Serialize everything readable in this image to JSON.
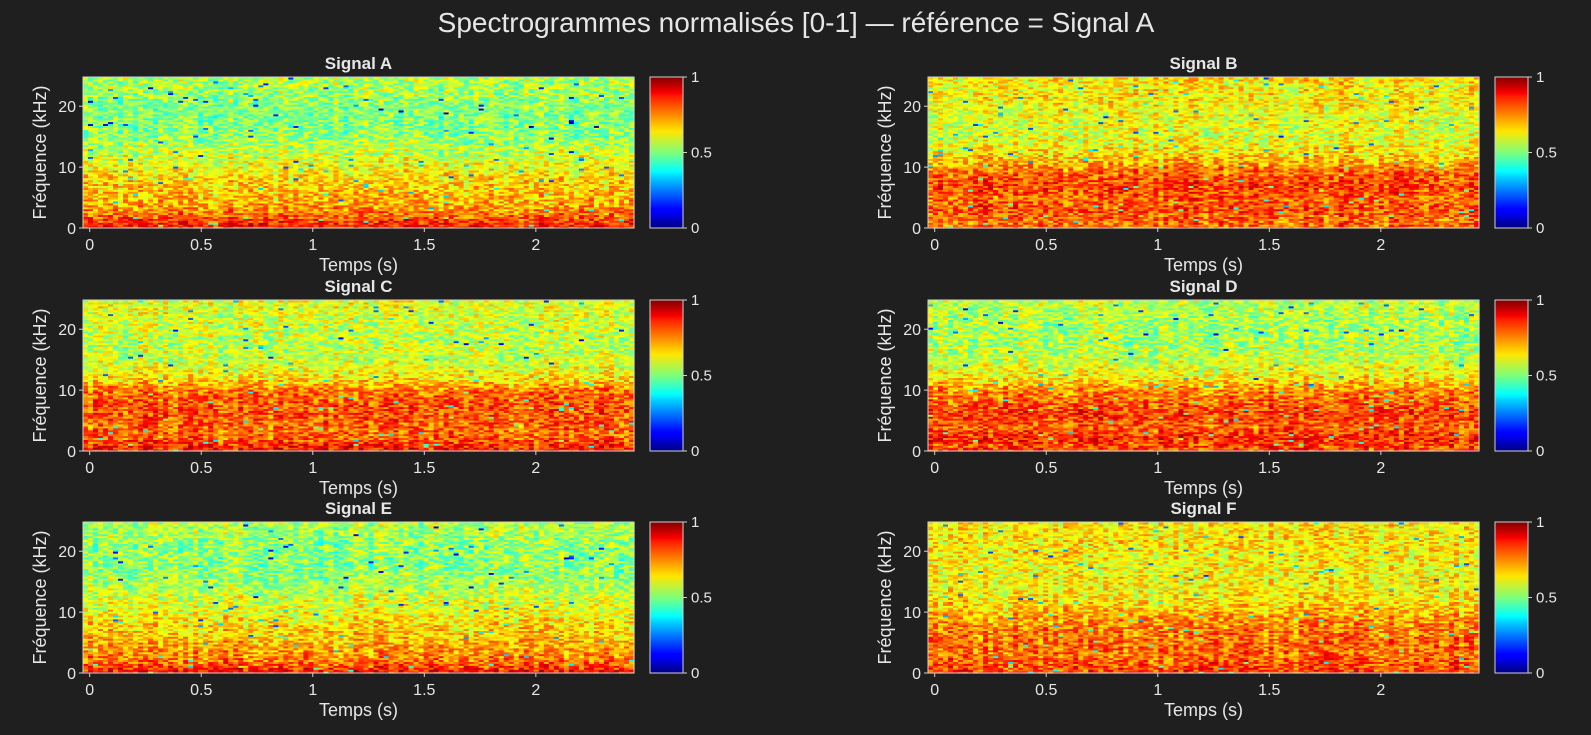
{
  "figure": {
    "title": "Spectrogrammes normalisés [0-1] — référence = Signal A",
    "colormap": "jet",
    "background": "#1f1f1f",
    "text_color": "#e6e6e6"
  },
  "chart_data": [
    {
      "type": "heatmap",
      "title": "Signal A",
      "xlabel": "Temps (s)",
      "ylabel": "Fréquence (kHz)",
      "xlim": [
        -0.03,
        2.44
      ],
      "ylim": [
        0,
        24.8
      ],
      "xticks": [
        "0",
        "0.5",
        "1",
        "1.5",
        "2"
      ],
      "xtick_values": [
        0,
        0.5,
        1,
        1.5,
        2
      ],
      "yticks": [
        "0",
        "10",
        "20"
      ],
      "ytick_values": [
        0,
        10,
        20
      ],
      "colorbar": {
        "range": [
          0,
          1
        ],
        "ticks": [
          "0",
          "0.5",
          "1"
        ]
      },
      "band_profile_khz": [
        [
          0,
          0.88
        ],
        [
          1,
          0.82
        ],
        [
          2,
          0.78
        ],
        [
          3,
          0.74
        ],
        [
          4,
          0.7
        ],
        [
          6,
          0.68
        ],
        [
          8,
          0.66
        ],
        [
          10,
          0.62
        ],
        [
          12,
          0.58
        ],
        [
          15,
          0.52
        ],
        [
          18,
          0.5
        ],
        [
          20,
          0.51
        ],
        [
          22,
          0.53
        ],
        [
          24.8,
          0.55
        ]
      ]
    },
    {
      "type": "heatmap",
      "title": "Signal B",
      "xlabel": "Temps (s)",
      "ylabel": "Fréquence (kHz)",
      "xlim": [
        -0.03,
        2.44
      ],
      "ylim": [
        0,
        24.8
      ],
      "xticks": [
        "0",
        "0.5",
        "1",
        "1.5",
        "2"
      ],
      "xtick_values": [
        0,
        0.5,
        1,
        1.5,
        2
      ],
      "yticks": [
        "0",
        "10",
        "20"
      ],
      "ytick_values": [
        0,
        10,
        20
      ],
      "colorbar": {
        "range": [
          0,
          1
        ],
        "ticks": [
          "0",
          "0.5",
          "1"
        ]
      },
      "band_profile_khz": [
        [
          0,
          0.78
        ],
        [
          1,
          0.76
        ],
        [
          3,
          0.8
        ],
        [
          5,
          0.78
        ],
        [
          7,
          0.82
        ],
        [
          9,
          0.78
        ],
        [
          10,
          0.74
        ],
        [
          12,
          0.66
        ],
        [
          15,
          0.6
        ],
        [
          18,
          0.6
        ],
        [
          21,
          0.63
        ],
        [
          24.8,
          0.64
        ]
      ]
    },
    {
      "type": "heatmap",
      "title": "Signal C",
      "xlabel": "Temps (s)",
      "ylabel": "Fréquence (kHz)",
      "xlim": [
        -0.03,
        2.44
      ],
      "ylim": [
        0,
        24.8
      ],
      "xticks": [
        "0",
        "0.5",
        "1",
        "1.5",
        "2"
      ],
      "xtick_values": [
        0,
        0.5,
        1,
        1.5,
        2
      ],
      "yticks": [
        "0",
        "10",
        "20"
      ],
      "ytick_values": [
        0,
        10,
        20
      ],
      "colorbar": {
        "range": [
          0,
          1
        ],
        "ticks": [
          "0",
          "0.5",
          "1"
        ]
      },
      "band_profile_khz": [
        [
          0,
          0.86
        ],
        [
          1,
          0.84
        ],
        [
          2,
          0.78
        ],
        [
          4,
          0.77
        ],
        [
          6,
          0.79
        ],
        [
          8,
          0.79
        ],
        [
          10,
          0.76
        ],
        [
          12,
          0.64
        ],
        [
          15,
          0.57
        ],
        [
          18,
          0.56
        ],
        [
          21,
          0.58
        ],
        [
          24.8,
          0.6
        ]
      ]
    },
    {
      "type": "heatmap",
      "title": "Signal D",
      "xlabel": "Temps (s)",
      "ylabel": "Fréquence (kHz)",
      "xlim": [
        -0.03,
        2.44
      ],
      "ylim": [
        0,
        24.8
      ],
      "xticks": [
        "0",
        "0.5",
        "1",
        "1.5",
        "2"
      ],
      "xtick_values": [
        0,
        0.5,
        1,
        1.5,
        2
      ],
      "yticks": [
        "0",
        "10",
        "20"
      ],
      "ytick_values": [
        0,
        10,
        20
      ],
      "colorbar": {
        "range": [
          0,
          1
        ],
        "ticks": [
          "0",
          "0.5",
          "1"
        ]
      },
      "band_profile_khz": [
        [
          0,
          0.82
        ],
        [
          1,
          0.8
        ],
        [
          2,
          0.84
        ],
        [
          4,
          0.78
        ],
        [
          6,
          0.82
        ],
        [
          8,
          0.78
        ],
        [
          10,
          0.74
        ],
        [
          12,
          0.64
        ],
        [
          15,
          0.57
        ],
        [
          18,
          0.54
        ],
        [
          21,
          0.54
        ],
        [
          24.8,
          0.56
        ]
      ]
    },
    {
      "type": "heatmap",
      "title": "Signal E",
      "xlabel": "Temps (s)",
      "ylabel": "Fréquence (kHz)",
      "xlim": [
        -0.03,
        2.44
      ],
      "ylim": [
        0,
        24.8
      ],
      "xticks": [
        "0",
        "0.5",
        "1",
        "1.5",
        "2"
      ],
      "xtick_values": [
        0,
        0.5,
        1,
        1.5,
        2
      ],
      "yticks": [
        "0",
        "10",
        "20"
      ],
      "ytick_values": [
        0,
        10,
        20
      ],
      "colorbar": {
        "range": [
          0,
          1
        ],
        "ticks": [
          "0",
          "0.5",
          "1"
        ]
      },
      "band_profile_khz": [
        [
          0,
          0.88
        ],
        [
          1,
          0.82
        ],
        [
          2,
          0.76
        ],
        [
          4,
          0.72
        ],
        [
          6,
          0.68
        ],
        [
          8,
          0.66
        ],
        [
          10,
          0.62
        ],
        [
          13,
          0.57
        ],
        [
          16,
          0.52
        ],
        [
          19,
          0.51
        ],
        [
          22,
          0.53
        ],
        [
          24.8,
          0.55
        ]
      ]
    },
    {
      "type": "heatmap",
      "title": "Signal F",
      "xlabel": "Temps (s)",
      "ylabel": "Fréquence (kHz)",
      "xlim": [
        -0.03,
        2.44
      ],
      "ylim": [
        0,
        24.8
      ],
      "xticks": [
        "0",
        "0.5",
        "1",
        "1.5",
        "2"
      ],
      "xtick_values": [
        0,
        0.5,
        1,
        1.5,
        2
      ],
      "yticks": [
        "0",
        "10",
        "20"
      ],
      "ytick_values": [
        0,
        10,
        20
      ],
      "colorbar": {
        "range": [
          0,
          1
        ],
        "ticks": [
          "0",
          "0.5",
          "1"
        ]
      },
      "band_profile_khz": [
        [
          0,
          0.82
        ],
        [
          1,
          0.8
        ],
        [
          3,
          0.76
        ],
        [
          5,
          0.77
        ],
        [
          7,
          0.75
        ],
        [
          9,
          0.72
        ],
        [
          11,
          0.66
        ],
        [
          14,
          0.62
        ],
        [
          17,
          0.62
        ],
        [
          20,
          0.64
        ],
        [
          24.8,
          0.64
        ]
      ]
    }
  ]
}
